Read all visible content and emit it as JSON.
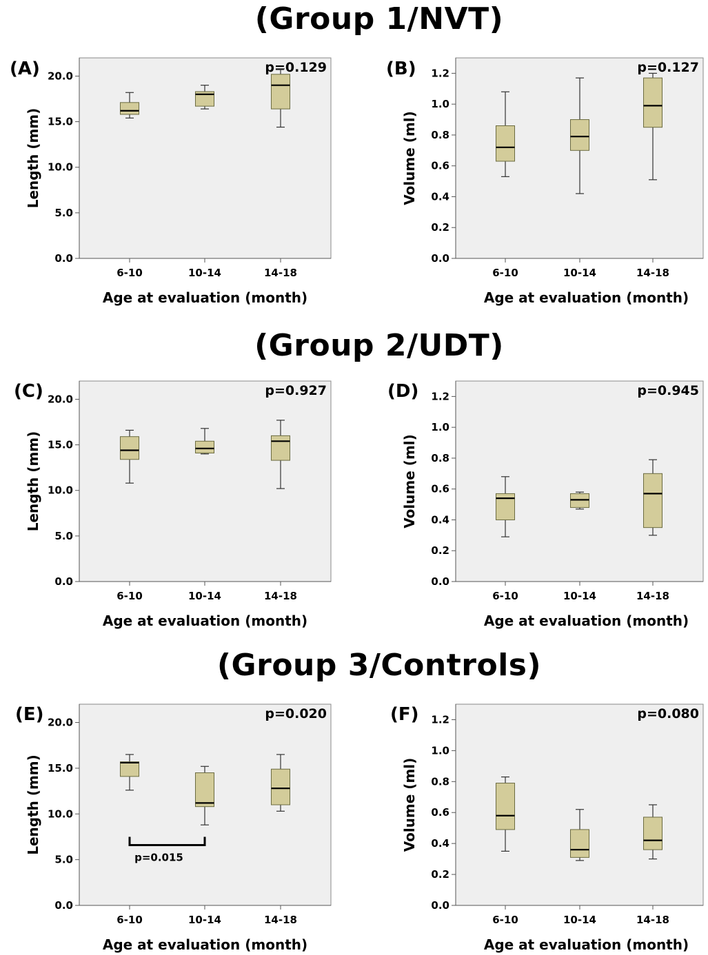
{
  "groups": [
    {
      "title": "(Group 1/NVT)"
    },
    {
      "title": "(Group 2/UDT)"
    },
    {
      "title": "(Group 3/Controls)"
    }
  ],
  "colors": {
    "box_fill": "#d3cc9a",
    "box_stroke": "#6b6b40",
    "plot_bg": "#efefef",
    "median": "#000000"
  },
  "chart_data": [
    {
      "panel": "(A)",
      "type": "box",
      "pvalue": "p=0.129",
      "ylabel": "Length (mm)",
      "xlabel": "Age at evaluation (month)",
      "categories": [
        "6-10",
        "10-14",
        "14-18"
      ],
      "ylim": [
        0,
        22
      ],
      "yticks": [
        0,
        5,
        10,
        15,
        20
      ],
      "ytick_labels": [
        "0.0",
        "5.0",
        "10.0",
        "15.0",
        "20.0"
      ],
      "boxes": [
        {
          "min": 15.4,
          "q1": 15.8,
          "median": 16.2,
          "q3": 17.1,
          "max": 18.2
        },
        {
          "min": 16.4,
          "q1": 16.7,
          "median": 18.0,
          "q3": 18.3,
          "max": 19.0
        },
        {
          "min": 14.4,
          "q1": 16.4,
          "median": 19.0,
          "q3": 20.2,
          "max": 20.8
        }
      ]
    },
    {
      "panel": "(B)",
      "type": "box",
      "pvalue": "p=0.127",
      "ylabel": "Volume (ml)",
      "xlabel": "Age at evaluation (month)",
      "categories": [
        "6-10",
        "10-14",
        "14-18"
      ],
      "ylim": [
        0,
        1.3
      ],
      "yticks": [
        0,
        0.2,
        0.4,
        0.6,
        0.8,
        1.0,
        1.2
      ],
      "ytick_labels": [
        "0.0",
        "0.2",
        "0.4",
        "0.6",
        "0.8",
        "1.0",
        "1.2"
      ],
      "boxes": [
        {
          "min": 0.53,
          "q1": 0.63,
          "median": 0.72,
          "q3": 0.86,
          "max": 1.08
        },
        {
          "min": 0.42,
          "q1": 0.7,
          "median": 0.79,
          "q3": 0.9,
          "max": 1.17
        },
        {
          "min": 0.51,
          "q1": 0.85,
          "median": 0.99,
          "q3": 1.17,
          "max": 1.2
        }
      ]
    },
    {
      "panel": "(C)",
      "type": "box",
      "pvalue": "p=0.927",
      "ylabel": "Length (mm)",
      "xlabel": "Age at evaluation (month)",
      "categories": [
        "6-10",
        "10-14",
        "14-18"
      ],
      "ylim": [
        0,
        22
      ],
      "yticks": [
        0,
        5,
        10,
        15,
        20
      ],
      "ytick_labels": [
        "0.0",
        "5.0",
        "10.0",
        "15.0",
        "20.0"
      ],
      "boxes": [
        {
          "min": 10.8,
          "q1": 13.4,
          "median": 14.4,
          "q3": 15.9,
          "max": 16.6
        },
        {
          "min": 14.0,
          "q1": 14.1,
          "median": 14.6,
          "q3": 15.4,
          "max": 16.8
        },
        {
          "min": 10.2,
          "q1": 13.3,
          "median": 15.4,
          "q3": 16.0,
          "max": 17.7
        }
      ]
    },
    {
      "panel": "(D)",
      "type": "box",
      "pvalue": "p=0.945",
      "ylabel": "Volume (ml)",
      "xlabel": "Age at evaluation (month)",
      "categories": [
        "6-10",
        "10-14",
        "14-18"
      ],
      "ylim": [
        0,
        1.3
      ],
      "yticks": [
        0,
        0.2,
        0.4,
        0.6,
        0.8,
        1.0,
        1.2
      ],
      "ytick_labels": [
        "0.0",
        "0.2",
        "0.4",
        "0.6",
        "0.8",
        "1.0",
        "1.2"
      ],
      "boxes": [
        {
          "min": 0.29,
          "q1": 0.4,
          "median": 0.54,
          "q3": 0.57,
          "max": 0.68
        },
        {
          "min": 0.47,
          "q1": 0.48,
          "median": 0.53,
          "q3": 0.57,
          "max": 0.58
        },
        {
          "min": 0.3,
          "q1": 0.35,
          "median": 0.57,
          "q3": 0.7,
          "max": 0.79
        }
      ]
    },
    {
      "panel": "(E)",
      "type": "box",
      "pvalue": "p=0.020",
      "ylabel": "Length (mm)",
      "xlabel": "Age at evaluation (month)",
      "categories": [
        "6-10",
        "10-14",
        "14-18"
      ],
      "ylim": [
        0,
        22
      ],
      "yticks": [
        0,
        5,
        10,
        15,
        20
      ],
      "ytick_labels": [
        "0.0",
        "5.0",
        "10.0",
        "15.0",
        "20.0"
      ],
      "boxes": [
        {
          "min": 12.6,
          "q1": 14.1,
          "median": 15.6,
          "q3": 15.7,
          "max": 16.5
        },
        {
          "min": 8.8,
          "q1": 10.8,
          "median": 11.2,
          "q3": 14.5,
          "max": 15.2
        },
        {
          "min": 10.3,
          "q1": 11.0,
          "median": 12.8,
          "q3": 14.9,
          "max": 16.5
        }
      ],
      "bracket": {
        "from": 0,
        "to": 1,
        "y": 7.5,
        "label": "p=0.015"
      }
    },
    {
      "panel": "(F)",
      "type": "box",
      "pvalue": "p=0.080",
      "ylabel": "Volume (ml)",
      "xlabel": "Age at evaluation (month)",
      "categories": [
        "6-10",
        "10-14",
        "14-18"
      ],
      "ylim": [
        0,
        1.3
      ],
      "yticks": [
        0,
        0.2,
        0.4,
        0.6,
        0.8,
        1.0,
        1.2
      ],
      "ytick_labels": [
        "0.0",
        "0.2",
        "0.4",
        "0.6",
        "0.8",
        "1.0",
        "1.2"
      ],
      "boxes": [
        {
          "min": 0.35,
          "q1": 0.49,
          "median": 0.58,
          "q3": 0.79,
          "max": 0.83
        },
        {
          "min": 0.29,
          "q1": 0.31,
          "median": 0.36,
          "q3": 0.49,
          "max": 0.62
        },
        {
          "min": 0.3,
          "q1": 0.36,
          "median": 0.42,
          "q3": 0.57,
          "max": 0.65
        }
      ]
    }
  ]
}
